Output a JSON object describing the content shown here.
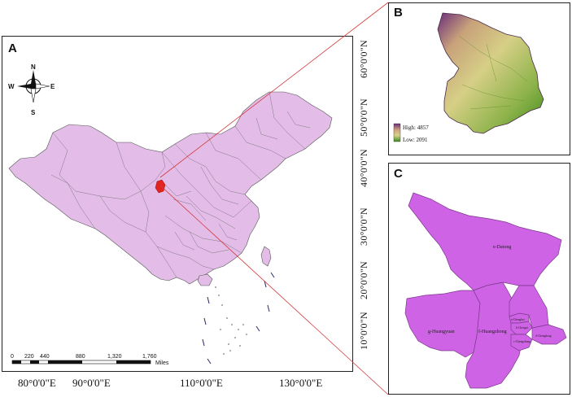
{
  "panels": {
    "a": {
      "label": "A"
    },
    "b": {
      "label": "B"
    },
    "c": {
      "label": "C"
    }
  },
  "latitude_labels": [
    "60°0'0\"N",
    "50°0'0\"N",
    "40°0'0\"N",
    "30°0'0\"N",
    "20°0'0\"N",
    "10°0'0\"N"
  ],
  "longitude_labels": [
    "80°0'0\"E",
    "90°0'0\"E",
    "110°0'0\"E",
    "130°0'0\"E"
  ],
  "compass": {
    "n": "N",
    "s": "S",
    "e": "E",
    "w": "W"
  },
  "scale_bar": {
    "ticks": [
      "0",
      "220",
      "440",
      "880",
      "1,320",
      "1,760"
    ],
    "unit": "Miles"
  },
  "dem_legend": {
    "high": "High: 4857",
    "low": "Low: 2091",
    "high_color": "#6b2d7a",
    "low_color": "#3e8a1e"
  },
  "districts": {
    "datong": "e-Datong",
    "huangyuan": "g-Huangyuan",
    "huangzhong": "f-Huangzhong",
    "chengbei": "a-Chengbei",
    "chengxi": "b-Chengxi",
    "chengzhong": "c-Chengzhong",
    "chengdong": "d-Chengdong"
  },
  "colors": {
    "china_fill": "#e3bde8",
    "study_area": "#e0241f",
    "district_fill": "#cf63e6",
    "connector": "#d43a3a"
  }
}
